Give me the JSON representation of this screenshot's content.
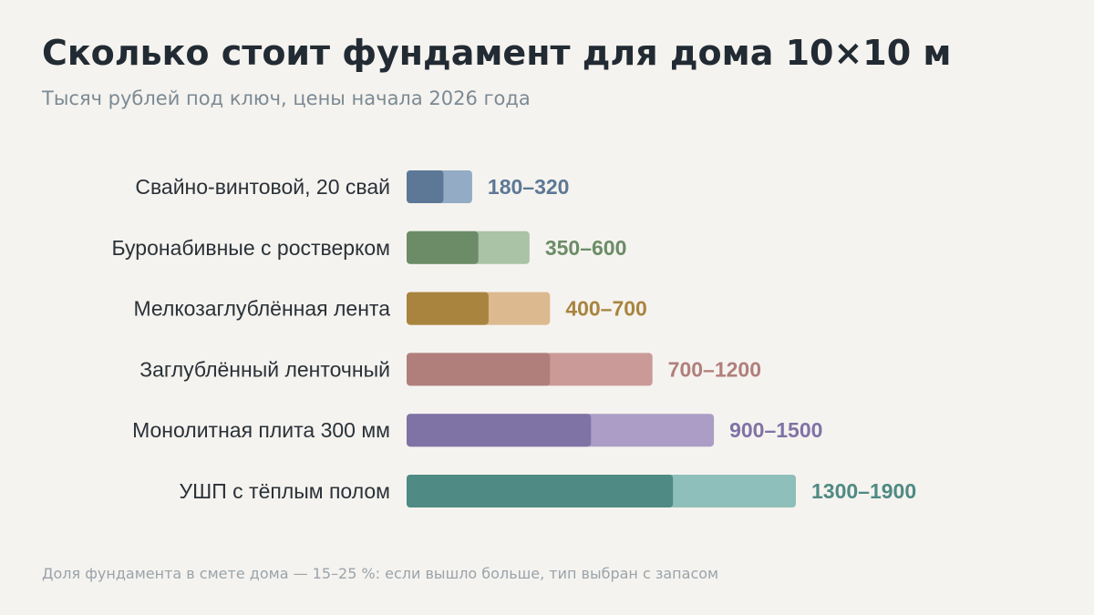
{
  "title": "Сколько стоит фундамент для дома 10×10 м",
  "subtitle": "Тысяч рублей под ключ, цены начала 2026 года",
  "footnote": "Доля фундамента в смете дома — 15–25 %: если вышло больше, тип выбран с запасом",
  "chart_data": {
    "type": "bar",
    "orientation": "horizontal",
    "style": "range bars: darker segment up to the lower bound, lighter segment up to the upper bound",
    "xlim": [
      0,
      1900
    ],
    "grid": false,
    "categories": [
      "Свайно-винтовой, 20 свай",
      "Буронабивные с ростверком",
      "Мелкозаглублённая лента",
      "Заглублённый ленточный",
      "Монолитная плита 300 мм",
      "УШП с тёплым полом"
    ],
    "min": [
      180,
      350,
      400,
      700,
      900,
      1300
    ],
    "max": [
      320,
      600,
      700,
      1200,
      1500,
      1900
    ],
    "value_labels": [
      "180–320",
      "350–600",
      "400–700",
      "700–1200",
      "900–1500",
      "1300–1900"
    ],
    "colors_dark": [
      "#5d7896",
      "#6b8c67",
      "#a8843f",
      "#b07f7c",
      "#7f73a6",
      "#4f8a84"
    ],
    "colors_light": [
      "#93abc4",
      "#aac2a5",
      "#dcb98e",
      "#c99a98",
      "#ab9dc6",
      "#8fbfba"
    ]
  }
}
